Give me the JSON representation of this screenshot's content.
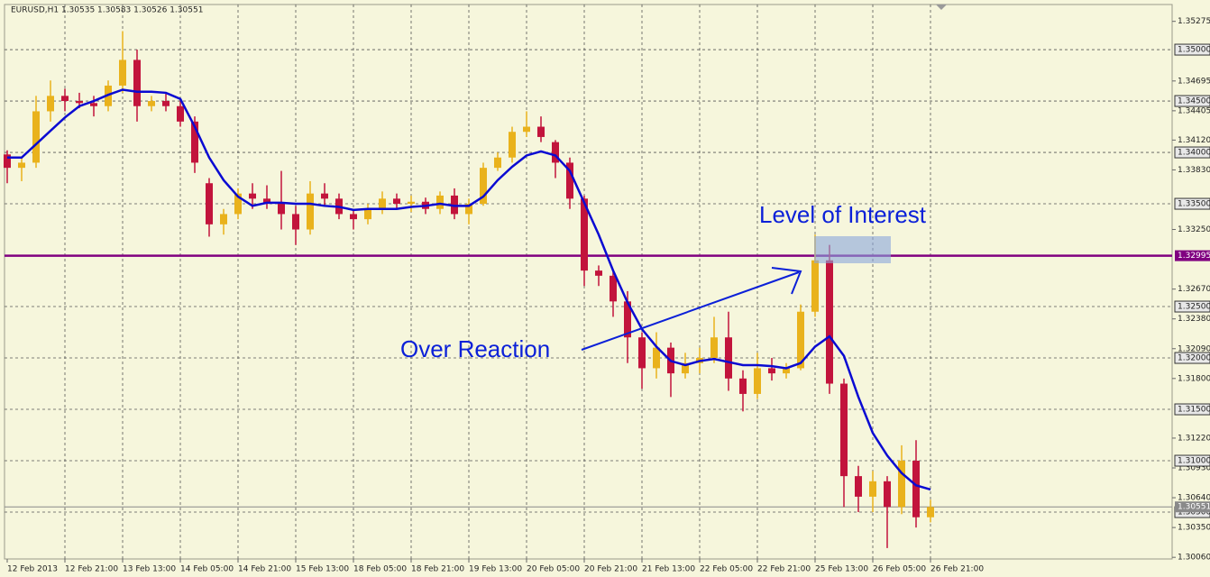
{
  "chart_data": {
    "type": "candlestick",
    "title": "EURUSD,H1  1.30535 1.30583 1.30526 1.30551",
    "categories": [
      "12 Feb 2013",
      null,
      null,
      null,
      "12 Feb 21:00",
      null,
      null,
      null,
      "13 Feb 13:00",
      null,
      null,
      null,
      "14 Feb 05:00",
      null,
      null,
      null,
      "14 Feb 21:00",
      null,
      null,
      null,
      "15 Feb 13:00",
      null,
      null,
      null,
      "18 Feb 05:00",
      null,
      null,
      null,
      "18 Feb 21:00",
      null,
      null,
      null,
      "19 Feb 13:00",
      null,
      null,
      null,
      "20 Feb 05:00",
      null,
      null,
      null,
      "20 Feb 21:00",
      null,
      null,
      null,
      "21 Feb 13:00",
      null,
      null,
      null,
      "22 Feb 05:00",
      null,
      null,
      null,
      "22 Feb 21:00",
      null,
      null,
      null,
      "25 Feb 13:00",
      null,
      null,
      null,
      "26 Feb 05:00",
      null,
      null,
      null,
      "26 Feb 21:00"
    ],
    "open": [
      1.3398,
      1.3385,
      1.339,
      1.344,
      1.3455,
      1.345,
      1.3448,
      1.3445,
      1.3465,
      1.349,
      1.3445,
      1.345,
      1.3445,
      1.343,
      1.337,
      1.333,
      1.334,
      1.336,
      1.3355,
      1.335,
      1.334,
      1.3325,
      1.336,
      1.3355,
      1.334,
      1.3335,
      1.3345,
      1.3355,
      1.335,
      1.3352,
      1.3345,
      1.3358,
      1.334,
      1.335,
      1.3385,
      1.3395,
      1.342,
      1.3425,
      1.341,
      1.339,
      1.3355,
      1.3285,
      1.328,
      1.3255,
      1.322,
      1.319,
      1.321,
      1.3185,
      1.3195,
      1.32,
      1.322,
      1.318,
      1.3165,
      1.319,
      1.3185,
      1.319,
      1.3245,
      1.3295,
      1.3175,
      1.3085,
      1.3065,
      1.308,
      1.3055,
      1.31,
      1.3045
    ],
    "high": [
      1.3402,
      1.3395,
      1.3455,
      1.347,
      1.3462,
      1.3458,
      1.3455,
      1.347,
      1.3518,
      1.35,
      1.3455,
      1.3458,
      1.3452,
      1.3435,
      1.3375,
      1.3345,
      1.3365,
      1.337,
      1.3368,
      1.3382,
      1.3348,
      1.3372,
      1.337,
      1.336,
      1.3345,
      1.335,
      1.3362,
      1.336,
      1.3358,
      1.3356,
      1.3362,
      1.3365,
      1.3355,
      1.339,
      1.34,
      1.3425,
      1.344,
      1.3435,
      1.3412,
      1.3395,
      1.3358,
      1.329,
      1.3285,
      1.3265,
      1.3225,
      1.3225,
      1.3215,
      1.3205,
      1.321,
      1.324,
      1.3245,
      1.3188,
      1.3205,
      1.32,
      1.3195,
      1.3252,
      1.332,
      1.331,
      1.318,
      1.3095,
      1.309,
      1.3085,
      1.3115,
      1.312,
      1.3062
    ],
    "low": [
      1.337,
      1.3372,
      1.3385,
      1.343,
      1.344,
      1.3443,
      1.3435,
      1.344,
      1.3458,
      1.343,
      1.344,
      1.344,
      1.3425,
      1.338,
      1.3318,
      1.332,
      1.3335,
      1.3345,
      1.3345,
      1.3325,
      1.331,
      1.332,
      1.3348,
      1.3335,
      1.3325,
      1.333,
      1.334,
      1.3345,
      1.3342,
      1.334,
      1.334,
      1.3335,
      1.333,
      1.3348,
      1.3382,
      1.339,
      1.3415,
      1.341,
      1.3375,
      1.3345,
      1.327,
      1.327,
      1.324,
      1.3195,
      1.317,
      1.318,
      1.3162,
      1.318,
      1.3185,
      1.3195,
      1.3168,
      1.3148,
      1.316,
      1.3178,
      1.318,
      1.3188,
      1.324,
      1.3165,
      1.3055,
      1.305,
      1.305,
      1.3015,
      1.3048,
      1.3035,
      1.304
    ],
    "close": [
      1.3385,
      1.339,
      1.344,
      1.3455,
      1.345,
      1.3448,
      1.3445,
      1.3465,
      1.349,
      1.3445,
      1.345,
      1.3445,
      1.343,
      1.339,
      1.333,
      1.334,
      1.336,
      1.3355,
      1.335,
      1.334,
      1.3325,
      1.336,
      1.3355,
      1.334,
      1.3335,
      1.3345,
      1.3355,
      1.335,
      1.3352,
      1.3345,
      1.3358,
      1.334,
      1.335,
      1.3385,
      1.3395,
      1.342,
      1.3425,
      1.3415,
      1.339,
      1.3355,
      1.3285,
      1.328,
      1.3255,
      1.322,
      1.319,
      1.321,
      1.3185,
      1.3195,
      1.32,
      1.322,
      1.318,
      1.3165,
      1.319,
      1.3185,
      1.319,
      1.3245,
      1.3295,
      1.3175,
      1.3085,
      1.3065,
      1.308,
      1.3055,
      1.31,
      1.3045,
      1.3055
    ],
    "up_color": "#e9b21c",
    "down_color": "#c2143c",
    "overlay_line": {
      "color": "#0a0ad2",
      "values": [
        1.3395,
        1.3395,
        1.3408,
        1.3421,
        1.3434,
        1.3445,
        1.345,
        1.3456,
        1.3461,
        1.3459,
        1.3459,
        1.3458,
        1.3452,
        1.3425,
        1.3395,
        1.3373,
        1.3357,
        1.3348,
        1.3351,
        1.3351,
        1.335,
        1.335,
        1.3348,
        1.3347,
        1.3344,
        1.3345,
        1.3345,
        1.3345,
        1.3347,
        1.3348,
        1.335,
        1.3348,
        1.3348,
        1.3357,
        1.3373,
        1.3386,
        1.3397,
        1.3401,
        1.3397,
        1.3382,
        1.3351,
        1.332,
        1.3285,
        1.3254,
        1.3228,
        1.3211,
        1.3197,
        1.3193,
        1.3197,
        1.3199,
        1.3196,
        1.3193,
        1.3193,
        1.3192,
        1.319,
        1.3195,
        1.3211,
        1.3221,
        1.3202,
        1.3162,
        1.3127,
        1.3105,
        1.3088,
        1.3076,
        1.3072
      ]
    },
    "ylim": [
      1.30044,
      1.35439
    ],
    "yticks": [
      1.35275,
      1.34695,
      1.34405,
      {
        "value": 1.3412,
        "label": "1.34120"
      },
      {
        "value": 1.3383,
        "label": "1.33830"
      },
      {
        "value": 1.3325,
        "label": "1.33250"
      },
      {
        "value": 1.3267,
        "label": "1.32670"
      },
      {
        "value": 1.3238,
        "label": "1.32380"
      },
      {
        "value": 1.3209,
        "label": "1.32090"
      },
      {
        "value": 1.318,
        "label": "1.31800"
      },
      {
        "value": 1.3122,
        "label": "1.31220"
      },
      {
        "value": 1.3093,
        "label": "1.30930"
      },
      {
        "value": 1.3064,
        "label": "1.30640"
      },
      {
        "value": 1.3035,
        "label": "1.30350"
      },
      {
        "value": 1.3006,
        "label": "1.30060"
      }
    ],
    "grid_yticks": [
      {
        "value": 1.35,
        "label": "1.35000"
      },
      {
        "value": 1.345,
        "label": "1.34500"
      },
      {
        "value": 1.34,
        "label": "1.34000"
      },
      {
        "value": 1.335,
        "label": "1.33500"
      },
      {
        "value": 1.325,
        "label": "1.32500"
      },
      {
        "value": 1.32,
        "label": "1.32000"
      },
      {
        "value": 1.315,
        "label": "1.31500"
      },
      {
        "value": 1.31,
        "label": "1.31000"
      },
      {
        "value": 1.305,
        "label": "1.30500"
      }
    ],
    "grid": true,
    "hline": {
      "value": 1.32995,
      "color": "#800080"
    },
    "current_price": {
      "value": 1.30551,
      "color": "#8a8a8a"
    },
    "annotations": [
      "Level of Interest",
      "Over Reaction"
    ]
  }
}
